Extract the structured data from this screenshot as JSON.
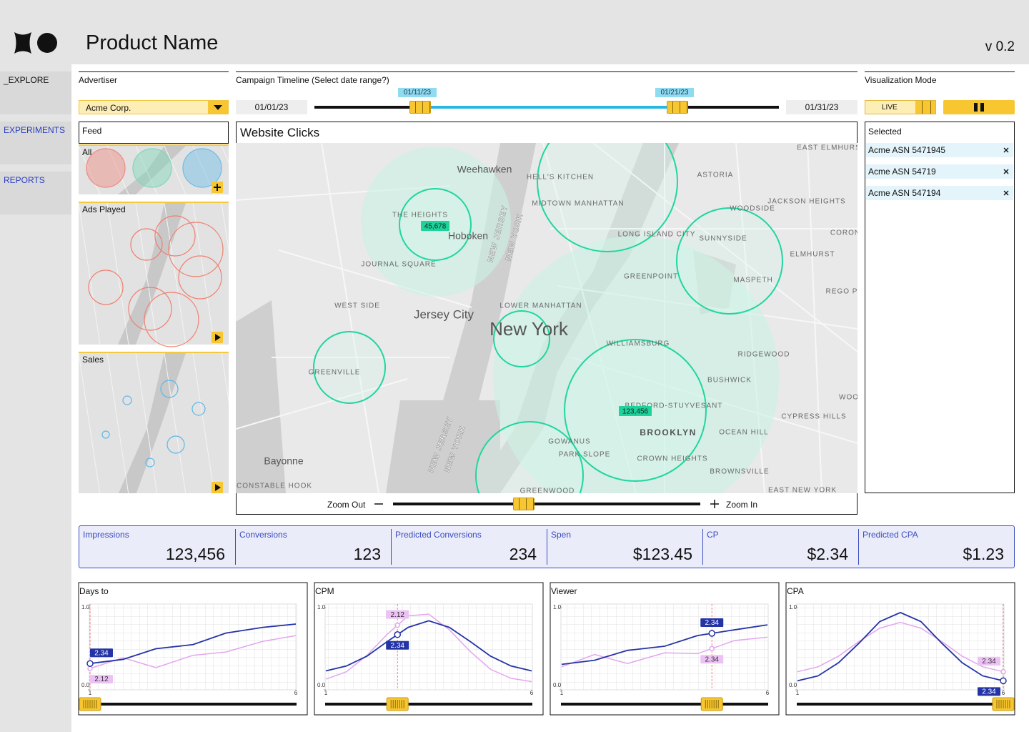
{
  "header": {
    "product_name": "Product Name",
    "version": "v 0.2"
  },
  "nav": [
    "_EXPLORE",
    "EXPERIMENTS",
    "REPORTS"
  ],
  "advertiser": {
    "label": "Advertiser",
    "selected": "Acme Corp."
  },
  "timeline": {
    "label": "Campaign Timeline (Select date range?)",
    "start": "01/01/23",
    "end": "01/31/23",
    "range_start": "01/11/23",
    "range_end": "01/21/23"
  },
  "visualization_mode": {
    "label": "Visualization Mode",
    "live": "LIVE"
  },
  "feed": {
    "label": "Feed",
    "items": [
      "All",
      "Ads Played",
      "Sales"
    ]
  },
  "map": {
    "title": "Website Clicks",
    "bubble_labels": [
      "45,678",
      "123,456"
    ],
    "places": [
      "Weehawken",
      "HELL'S KITCHEN",
      "ASTORIA",
      "EAST ELMHURS",
      "MIDTOWN MANHATTAN",
      "JACKSON HEIGHTS",
      "THE HEIGHTS",
      "Hoboken",
      "NEW JERSEY",
      "NEW YORK",
      "WOODSIDE",
      "LONG ISLAND CITY",
      "SUNNYSIDE",
      "CORON",
      "ELMHURST",
      "JOURNAL SQUARE",
      "GREENPOINT",
      "MASPETH",
      "REGO P",
      "WEST SIDE",
      "LOWER MANHATTAN",
      "Jersey City",
      "New York",
      "WILLIAMSBURG",
      "RIDGEWOOD",
      "GREENVILLE",
      "BUSHWICK",
      "WOO",
      "BEDFORD-STUYVESANT",
      "CYPRESS HILLS",
      "BROOKLYN",
      "OCEAN HILL",
      "GOWANUS",
      "PARK SLOPE",
      "CROWN HEIGHTS",
      "BROWNSVILLE",
      "Bayonne",
      "CONSTABLE HOOK",
      "GREENWOOD",
      "EAST NEW YORK",
      "NEW JERSEY",
      "NEW YORK"
    ],
    "zoom_out": "Zoom Out",
    "zoom_in": "Zoom In"
  },
  "selected": {
    "label": "Selected",
    "items": [
      "Acme ASN 5471945",
      "Acme ASN 54719",
      "Acme ASN 547194"
    ]
  },
  "metrics": [
    {
      "label": "Impressions",
      "value": "123,456"
    },
    {
      "label": "Conversions",
      "value": "123"
    },
    {
      "label": "Predicted Conversions",
      "value": "234"
    },
    {
      "label": "Spen",
      "value": "$123.45"
    },
    {
      "label": "CP",
      "value": "$2.34"
    },
    {
      "label": "Predicted CPA",
      "value": "$1.23"
    }
  ],
  "charts": [
    {
      "type": "line",
      "title": "Days to",
      "x": [
        1,
        1.8,
        2.6,
        3.5,
        4.3,
        5.2,
        6
      ],
      "series": [
        {
          "color": "#2433a6",
          "values": [
            0.32,
            0.37,
            0.5,
            0.55,
            0.69,
            0.76,
            0.8
          ]
        },
        {
          "color": "#e3a6ef",
          "values": [
            0.26,
            0.39,
            0.27,
            0.42,
            0.46,
            0.59,
            0.66
          ]
        }
      ],
      "xlim": [
        1,
        6
      ],
      "xticks": [
        1,
        6
      ],
      "ylim": [
        0,
        1
      ],
      "yticks": [
        {
          "value": 0,
          "label": "0.0"
        },
        {
          "value": 1,
          "label": "1.0"
        }
      ],
      "cursor": 1,
      "cursor_labels": [
        "2.34",
        "2.12"
      ]
    },
    {
      "type": "line",
      "title": "CPM",
      "x": [
        1,
        1.5,
        2,
        2.5,
        3,
        3.5,
        4,
        4.5,
        5,
        5.5,
        6
      ],
      "series": [
        {
          "color": "#2433a6",
          "values": [
            0.23,
            0.29,
            0.41,
            0.59,
            0.76,
            0.84,
            0.76,
            0.59,
            0.41,
            0.29,
            0.23
          ]
        },
        {
          "color": "#e3a6ef",
          "values": [
            0.13,
            0.22,
            0.42,
            0.68,
            0.9,
            0.92,
            0.73,
            0.47,
            0.25,
            0.14,
            0.1
          ]
        }
      ],
      "xlim": [
        1,
        6
      ],
      "xticks": [
        1,
        6
      ],
      "ylim": [
        0,
        1
      ],
      "yticks": [
        {
          "value": 0,
          "label": "0.0"
        },
        {
          "value": 1,
          "label": "1.0"
        }
      ],
      "cursor": 2.74,
      "cursor_labels": [
        "2.34",
        "2.12"
      ]
    },
    {
      "type": "line",
      "title": "Viewer",
      "x": [
        1,
        1.8,
        2.6,
        3.5,
        4.3,
        5.2,
        6
      ],
      "series": [
        {
          "color": "#2433a6",
          "values": [
            0.31,
            0.36,
            0.48,
            0.53,
            0.66,
            0.73,
            0.79
          ]
        },
        {
          "color": "#e3a6ef",
          "values": [
            0.28,
            0.43,
            0.32,
            0.45,
            0.44,
            0.6,
            0.64
          ]
        }
      ],
      "xlim": [
        1,
        6
      ],
      "xticks": [
        1,
        6
      ],
      "ylim": [
        0,
        1
      ],
      "yticks": [
        {
          "value": 0,
          "label": "0.0"
        },
        {
          "value": 1,
          "label": "1.0"
        }
      ],
      "cursor": 4.65,
      "cursor_labels": [
        "2.34",
        "2.34"
      ]
    },
    {
      "type": "line",
      "title": "CPA",
      "x": [
        1,
        1.5,
        2,
        2.5,
        3,
        3.5,
        4,
        4.5,
        5,
        5.5,
        6
      ],
      "series": [
        {
          "color": "#2433a6",
          "values": [
            0.11,
            0.17,
            0.33,
            0.57,
            0.83,
            0.94,
            0.83,
            0.57,
            0.33,
            0.17,
            0.11
          ]
        },
        {
          "color": "#e3a6ef",
          "values": [
            0.22,
            0.28,
            0.41,
            0.59,
            0.75,
            0.82,
            0.75,
            0.59,
            0.41,
            0.28,
            0.22
          ]
        }
      ],
      "xlim": [
        1,
        6
      ],
      "xticks": [
        1,
        6
      ],
      "ylim": [
        0,
        1
      ],
      "yticks": [
        {
          "value": 0,
          "label": "0.0"
        },
        {
          "value": 1,
          "label": "1.0"
        }
      ],
      "cursor": 6,
      "cursor_labels": [
        "2.34",
        "2.34"
      ]
    }
  ]
}
